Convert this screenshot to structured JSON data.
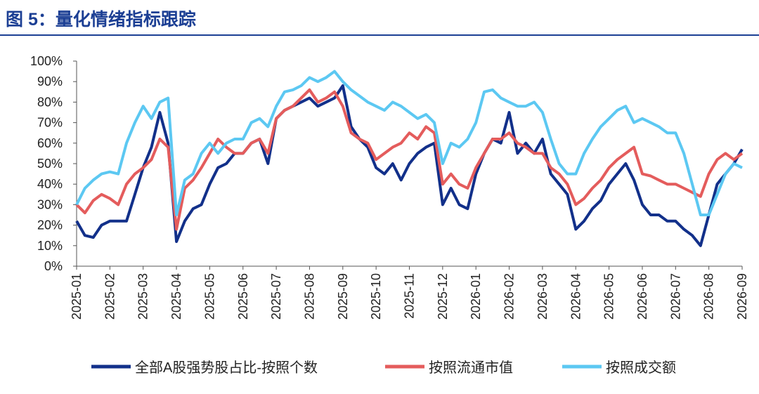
{
  "chart_data": {
    "type": "line",
    "title": "图 5：量化情绪指标跟踪",
    "categories": [
      "2025-01",
      null,
      null,
      null,
      "2025-02",
      null,
      null,
      null,
      "2025-03",
      null,
      null,
      null,
      "2025-04",
      null,
      null,
      null,
      "2025-05",
      null,
      null,
      null,
      "2025-06",
      null,
      null,
      null,
      "2025-07",
      null,
      null,
      null,
      "2025-08",
      null,
      null,
      null,
      "2025-09",
      null,
      null,
      null,
      "2025-10",
      null,
      null,
      null,
      "2025-11",
      null,
      null,
      null,
      "2025-12",
      null,
      null,
      null,
      "2026-01",
      null,
      null,
      null,
      "2026-02",
      null,
      null,
      null,
      "2026-03",
      null,
      null,
      null,
      "2026-04",
      null,
      null,
      null,
      "2026-05",
      null,
      null,
      null,
      "2026-06",
      null,
      null,
      null,
      "2026-07",
      null,
      null,
      null,
      "2026-08",
      null,
      null,
      null,
      "2026-09"
    ],
    "series": [
      {
        "name": "全部A股强势股占比-按照个数",
        "color": "#12308a",
        "values": [
          22,
          15,
          14,
          20,
          22,
          22,
          22,
          35,
          48,
          58,
          75,
          60,
          12,
          22,
          28,
          30,
          40,
          48,
          50,
          55,
          55,
          60,
          62,
          50,
          72,
          76,
          78,
          80,
          82,
          78,
          80,
          82,
          88,
          68,
          62,
          58,
          48,
          45,
          50,
          42,
          50,
          55,
          58,
          60,
          30,
          38,
          30,
          28,
          45,
          55,
          62,
          60,
          75,
          55,
          60,
          55,
          62,
          45,
          40,
          35,
          18,
          22,
          28,
          32,
          40,
          45,
          50,
          42,
          30,
          25,
          25,
          22,
          22,
          18,
          15,
          10,
          25,
          40,
          45,
          50,
          57
        ]
      },
      {
        "name": "按照流通市值",
        "color": "#e45c5c",
        "values": [
          30,
          26,
          32,
          35,
          33,
          30,
          40,
          45,
          48,
          52,
          62,
          58,
          18,
          38,
          42,
          48,
          55,
          62,
          58,
          55,
          55,
          60,
          62,
          55,
          72,
          76,
          78,
          82,
          86,
          80,
          82,
          85,
          78,
          65,
          62,
          60,
          52,
          55,
          58,
          60,
          65,
          62,
          68,
          65,
          40,
          45,
          40,
          38,
          48,
          55,
          62,
          62,
          65,
          60,
          58,
          55,
          55,
          48,
          45,
          40,
          30,
          33,
          38,
          42,
          48,
          52,
          55,
          58,
          45,
          44,
          42,
          40,
          40,
          38,
          36,
          34,
          45,
          52,
          55,
          52,
          55
        ]
      },
      {
        "name": "按照成交额",
        "color": "#5cc8f2",
        "values": [
          30,
          38,
          42,
          45,
          46,
          45,
          60,
          70,
          78,
          72,
          80,
          82,
          25,
          42,
          45,
          55,
          60,
          55,
          60,
          62,
          62,
          70,
          72,
          68,
          78,
          85,
          86,
          88,
          92,
          90,
          92,
          95,
          90,
          86,
          83,
          80,
          78,
          76,
          80,
          78,
          75,
          72,
          74,
          70,
          50,
          60,
          58,
          62,
          70,
          85,
          86,
          82,
          80,
          78,
          78,
          80,
          75,
          62,
          50,
          45,
          45,
          55,
          62,
          68,
          72,
          76,
          78,
          70,
          72,
          70,
          68,
          65,
          65,
          55,
          40,
          25,
          25,
          35,
          45,
          50,
          48
        ]
      }
    ],
    "ylim": [
      0,
      100
    ],
    "yticks": [
      {
        "value": 0,
        "label": "0%"
      },
      {
        "value": 10,
        "label": "10%"
      },
      {
        "value": 20,
        "label": "20%"
      },
      {
        "value": 30,
        "label": "30%"
      },
      {
        "value": 40,
        "label": "40%"
      },
      {
        "value": 50,
        "label": "50%"
      },
      {
        "value": 60,
        "label": "60%"
      },
      {
        "value": 70,
        "label": "70%"
      },
      {
        "value": 80,
        "label": "80%"
      },
      {
        "value": 90,
        "label": "90%"
      },
      {
        "value": 100,
        "label": "100%"
      }
    ]
  }
}
